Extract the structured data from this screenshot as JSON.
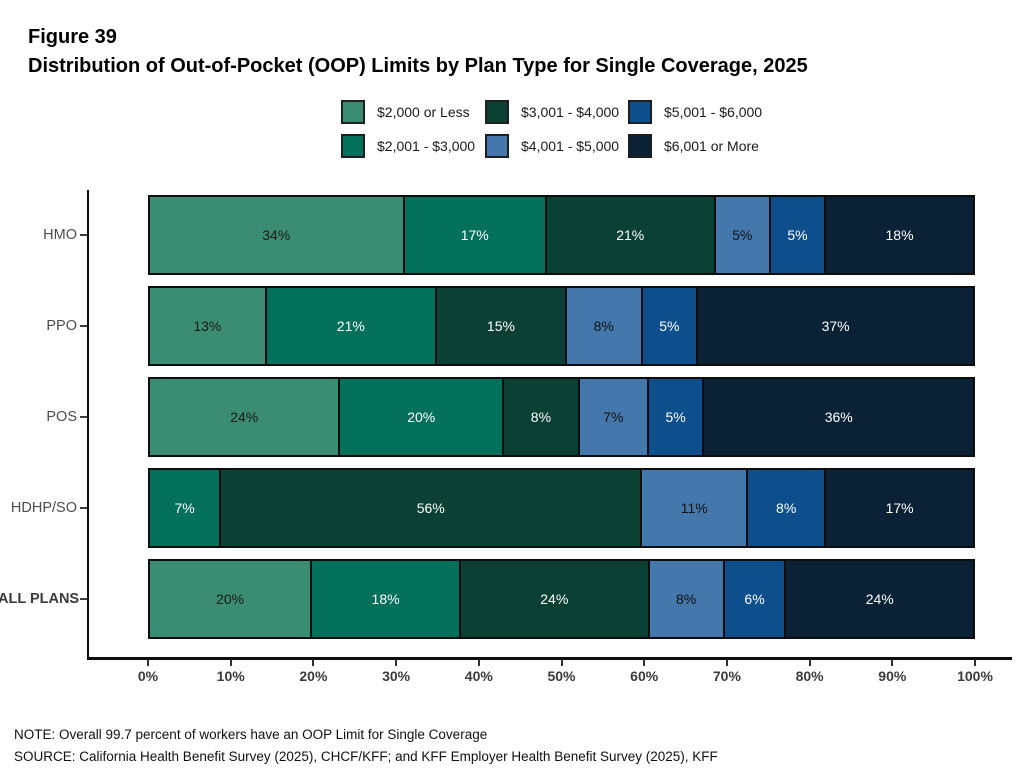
{
  "header": {
    "figure_label": "Figure 39",
    "title": "Distribution of Out-of-Pocket (OOP) Limits by Plan Type for Single Coverage, 2025"
  },
  "chart_data": {
    "type": "bar",
    "orientation": "horizontal",
    "stacked": true,
    "title": "Distribution of Out-of-Pocket (OOP) Limits by Plan Type for Single Coverage, 2025",
    "categories": [
      "HMO",
      "PPO",
      "POS",
      "HDHP/SO",
      "ALL PLANS"
    ],
    "emphasized_category": "ALL PLANS",
    "series": [
      {
        "name": "$2,000 or Less",
        "color": "#3A8C72",
        "label_color": "#1a1a1a",
        "values": [
          34,
          13,
          24,
          0,
          20
        ]
      },
      {
        "name": "$2,001 - $3,000",
        "color": "#02705A",
        "label_color": "#ffffff",
        "values": [
          17,
          21,
          20,
          7,
          18
        ]
      },
      {
        "name": "$3,001 - $4,000",
        "color": "#0B4134",
        "label_color": "#ffffff",
        "values": [
          21,
          15,
          8,
          56,
          24
        ]
      },
      {
        "name": "$4,001 - $5,000",
        "color": "#4478AC",
        "label_color": "#111111",
        "values": [
          5,
          8,
          7,
          11,
          8
        ]
      },
      {
        "name": "$5,001 - $6,000",
        "color": "#0D4E8D",
        "label_color": "#ffffff",
        "values": [
          5,
          5,
          5,
          8,
          6
        ]
      },
      {
        "name": "$6,001 or More",
        "color": "#0B2236",
        "label_color": "#ffffff",
        "values": [
          18,
          37,
          36,
          17,
          24
        ]
      }
    ],
    "x_ticks": [
      "0%",
      "10%",
      "20%",
      "30%",
      "40%",
      "50%",
      "60%",
      "70%",
      "80%",
      "90%",
      "100%"
    ],
    "xlim": [
      0,
      100
    ],
    "value_suffix": "%",
    "legend_position": "top",
    "grid": false,
    "xlabel": "",
    "ylabel": ""
  },
  "footer": {
    "note": "NOTE: Overall 99.7 percent of workers have an OOP Limit for Single Coverage",
    "source": "SOURCE: California Health Benefit Survey (2025), CHCF/KFF; and KFF Employer Health Benefit Survey (2025), KFF"
  }
}
